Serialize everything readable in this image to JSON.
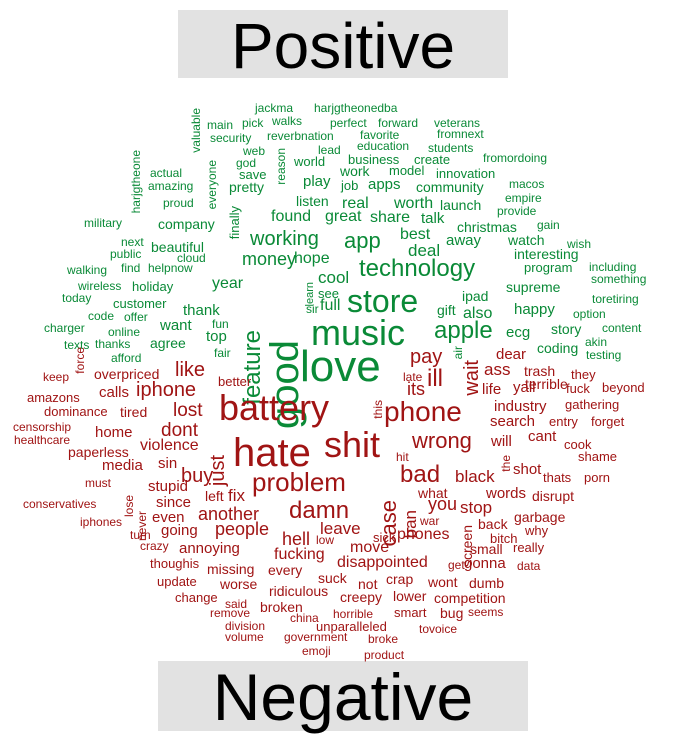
{
  "banners": {
    "positive": "Positive",
    "negative": "Negative"
  },
  "colors": {
    "positive": "#0a8a37",
    "negative": "#a01414",
    "banner_bg": "#e2e2e2"
  },
  "words": [
    {
      "t": "jackma",
      "c": "pos"
    },
    {
      "t": "harjgtheonedba",
      "c": "pos"
    },
    {
      "t": "valuable",
      "c": "pos"
    },
    {
      "t": "main",
      "c": "pos"
    },
    {
      "t": "pick",
      "c": "pos"
    },
    {
      "t": "walks",
      "c": "pos"
    },
    {
      "t": "perfect",
      "c": "pos"
    },
    {
      "t": "forward",
      "c": "pos"
    },
    {
      "t": "veterans",
      "c": "pos"
    },
    {
      "t": "security",
      "c": "pos"
    },
    {
      "t": "reverbnation",
      "c": "pos"
    },
    {
      "t": "favorite",
      "c": "pos"
    },
    {
      "t": "fromnext",
      "c": "pos"
    },
    {
      "t": "web",
      "c": "pos"
    },
    {
      "t": "lead",
      "c": "pos"
    },
    {
      "t": "education",
      "c": "pos"
    },
    {
      "t": "students",
      "c": "pos"
    },
    {
      "t": "harjgtheone",
      "c": "pos"
    },
    {
      "t": "god",
      "c": "pos"
    },
    {
      "t": "reason",
      "c": "pos"
    },
    {
      "t": "world",
      "c": "pos"
    },
    {
      "t": "business",
      "c": "pos"
    },
    {
      "t": "create",
      "c": "pos"
    },
    {
      "t": "fromordoing",
      "c": "pos"
    },
    {
      "t": "actual",
      "c": "pos"
    },
    {
      "t": "save",
      "c": "pos"
    },
    {
      "t": "work",
      "c": "pos"
    },
    {
      "t": "model",
      "c": "pos"
    },
    {
      "t": "innovation",
      "c": "pos"
    },
    {
      "t": "amazing",
      "c": "pos"
    },
    {
      "t": "everyone",
      "c": "pos"
    },
    {
      "t": "pretty",
      "c": "pos"
    },
    {
      "t": "play",
      "c": "pos"
    },
    {
      "t": "job",
      "c": "pos"
    },
    {
      "t": "apps",
      "c": "pos"
    },
    {
      "t": "community",
      "c": "pos"
    },
    {
      "t": "macos",
      "c": "pos"
    },
    {
      "t": "proud",
      "c": "pos"
    },
    {
      "t": "listen",
      "c": "pos"
    },
    {
      "t": "real",
      "c": "pos"
    },
    {
      "t": "worth",
      "c": "pos"
    },
    {
      "t": "launch",
      "c": "pos"
    },
    {
      "t": "empire",
      "c": "pos"
    },
    {
      "t": "provide",
      "c": "pos"
    },
    {
      "t": "military",
      "c": "pos"
    },
    {
      "t": "company",
      "c": "pos"
    },
    {
      "t": "finally",
      "c": "pos"
    },
    {
      "t": "found",
      "c": "pos"
    },
    {
      "t": "great",
      "c": "pos"
    },
    {
      "t": "share",
      "c": "pos"
    },
    {
      "t": "talk",
      "c": "pos"
    },
    {
      "t": "christmas",
      "c": "pos"
    },
    {
      "t": "gain",
      "c": "pos"
    },
    {
      "t": "working",
      "c": "pos"
    },
    {
      "t": "app",
      "c": "pos"
    },
    {
      "t": "best",
      "c": "pos"
    },
    {
      "t": "away",
      "c": "pos"
    },
    {
      "t": "watch",
      "c": "pos"
    },
    {
      "t": "wish",
      "c": "pos"
    },
    {
      "t": "next",
      "c": "pos"
    },
    {
      "t": "beautiful",
      "c": "pos"
    },
    {
      "t": "public",
      "c": "pos"
    },
    {
      "t": "cloud",
      "c": "pos"
    },
    {
      "t": "love",
      "c": "pos"
    },
    {
      "t": "deal",
      "c": "pos"
    },
    {
      "t": "interesting",
      "c": "pos"
    },
    {
      "t": "money",
      "c": "pos"
    },
    {
      "t": "hope",
      "c": "pos"
    },
    {
      "t": "technology",
      "c": "pos"
    },
    {
      "t": "walking",
      "c": "pos"
    },
    {
      "t": "find",
      "c": "pos"
    },
    {
      "t": "helpnow",
      "c": "pos"
    },
    {
      "t": "program",
      "c": "pos"
    },
    {
      "t": "including",
      "c": "pos"
    },
    {
      "t": "good",
      "c": "pos"
    },
    {
      "t": "cool",
      "c": "pos"
    },
    {
      "t": "something",
      "c": "pos"
    },
    {
      "t": "wireless",
      "c": "pos"
    },
    {
      "t": "holiday",
      "c": "pos"
    },
    {
      "t": "year",
      "c": "pos"
    },
    {
      "t": "learn",
      "c": "pos"
    },
    {
      "t": "store",
      "c": "pos"
    },
    {
      "t": "supreme",
      "c": "pos"
    },
    {
      "t": "today",
      "c": "pos"
    },
    {
      "t": "customer",
      "c": "pos"
    },
    {
      "t": "feature",
      "c": "pos"
    },
    {
      "t": "see",
      "c": "pos"
    },
    {
      "t": "ipad",
      "c": "pos"
    },
    {
      "t": "toretiring",
      "c": "pos"
    },
    {
      "t": "code",
      "c": "pos"
    },
    {
      "t": "offer",
      "c": "pos"
    },
    {
      "t": "thank",
      "c": "pos"
    },
    {
      "t": "sir",
      "c": "pos"
    },
    {
      "t": "full",
      "c": "pos"
    },
    {
      "t": "gift",
      "c": "pos"
    },
    {
      "t": "also",
      "c": "pos"
    },
    {
      "t": "happy",
      "c": "pos"
    },
    {
      "t": "option",
      "c": "pos"
    },
    {
      "t": "charger",
      "c": "pos"
    },
    {
      "t": "fun",
      "c": "pos"
    },
    {
      "t": "music",
      "c": "pos"
    },
    {
      "t": "apple",
      "c": "pos"
    },
    {
      "t": "content",
      "c": "pos"
    },
    {
      "t": "online",
      "c": "pos"
    },
    {
      "t": "want",
      "c": "pos"
    },
    {
      "t": "story",
      "c": "pos"
    },
    {
      "t": "texts",
      "c": "pos"
    },
    {
      "t": "thanks",
      "c": "pos"
    },
    {
      "t": "top",
      "c": "pos"
    },
    {
      "t": "ecg",
      "c": "pos"
    },
    {
      "t": "akin",
      "c": "pos"
    },
    {
      "t": "agree",
      "c": "pos"
    },
    {
      "t": "coding",
      "c": "pos"
    },
    {
      "t": "force",
      "c": "neg"
    },
    {
      "t": "afford",
      "c": "pos"
    },
    {
      "t": "fair",
      "c": "pos"
    },
    {
      "t": "air",
      "c": "pos"
    },
    {
      "t": "dear",
      "c": "neg"
    },
    {
      "t": "testing",
      "c": "pos"
    },
    {
      "t": "keep",
      "c": "neg"
    },
    {
      "t": "overpriced",
      "c": "neg"
    },
    {
      "t": "like",
      "c": "neg"
    },
    {
      "t": "pay",
      "c": "neg"
    },
    {
      "t": "late",
      "c": "neg"
    },
    {
      "t": "wait",
      "c": "neg"
    },
    {
      "t": "ass",
      "c": "neg"
    },
    {
      "t": "trash",
      "c": "neg"
    },
    {
      "t": "they",
      "c": "neg"
    },
    {
      "t": "better",
      "c": "neg"
    },
    {
      "t": "its",
      "c": "neg"
    },
    {
      "t": "ill",
      "c": "neg"
    },
    {
      "t": "terrible",
      "c": "neg"
    },
    {
      "t": "amazons",
      "c": "neg"
    },
    {
      "t": "calls",
      "c": "neg"
    },
    {
      "t": "iphone",
      "c": "neg"
    },
    {
      "t": "life",
      "c": "neg"
    },
    {
      "t": "yall",
      "c": "neg"
    },
    {
      "t": "fuck",
      "c": "neg"
    },
    {
      "t": "beyond",
      "c": "neg"
    },
    {
      "t": "battery",
      "c": "neg"
    },
    {
      "t": "dominance",
      "c": "neg"
    },
    {
      "t": "tired",
      "c": "neg"
    },
    {
      "t": "lost",
      "c": "neg"
    },
    {
      "t": "this",
      "c": "neg"
    },
    {
      "t": "phone",
      "c": "neg"
    },
    {
      "t": "industry",
      "c": "neg"
    },
    {
      "t": "gathering",
      "c": "neg"
    },
    {
      "t": "censorship",
      "c": "neg"
    },
    {
      "t": "entry",
      "c": "neg"
    },
    {
      "t": "forget",
      "c": "neg"
    },
    {
      "t": "home",
      "c": "neg"
    },
    {
      "t": "dont",
      "c": "neg"
    },
    {
      "t": "search",
      "c": "neg"
    },
    {
      "t": "healthcare",
      "c": "neg"
    },
    {
      "t": "cant",
      "c": "neg"
    },
    {
      "t": "violence",
      "c": "neg"
    },
    {
      "t": "wrong",
      "c": "neg"
    },
    {
      "t": "will",
      "c": "neg"
    },
    {
      "t": "cook",
      "c": "neg"
    },
    {
      "t": "paperless",
      "c": "neg"
    },
    {
      "t": "just",
      "c": "neg"
    },
    {
      "t": "hate",
      "c": "neg"
    },
    {
      "t": "shit",
      "c": "neg"
    },
    {
      "t": "hit",
      "c": "neg"
    },
    {
      "t": "shame",
      "c": "neg"
    },
    {
      "t": "media",
      "c": "neg"
    },
    {
      "t": "sin",
      "c": "neg"
    },
    {
      "t": "the",
      "c": "neg"
    },
    {
      "t": "shot",
      "c": "neg"
    },
    {
      "t": "thats",
      "c": "neg"
    },
    {
      "t": "porn",
      "c": "neg"
    },
    {
      "t": "must",
      "c": "neg"
    },
    {
      "t": "buy",
      "c": "neg"
    },
    {
      "t": "bad",
      "c": "neg"
    },
    {
      "t": "black",
      "c": "neg"
    },
    {
      "t": "stupid",
      "c": "neg"
    },
    {
      "t": "problem",
      "c": "neg"
    },
    {
      "t": "case",
      "c": "neg"
    },
    {
      "t": "what",
      "c": "neg"
    },
    {
      "t": "words",
      "c": "neg"
    },
    {
      "t": "disrupt",
      "c": "neg"
    },
    {
      "t": "conservatives",
      "c": "neg"
    },
    {
      "t": "lose",
      "c": "neg"
    },
    {
      "t": "since",
      "c": "neg"
    },
    {
      "t": "left",
      "c": "neg"
    },
    {
      "t": "fix",
      "c": "neg"
    },
    {
      "t": "ban",
      "c": "neg"
    },
    {
      "t": "you",
      "c": "neg"
    },
    {
      "t": "stop",
      "c": "neg"
    },
    {
      "t": "never",
      "c": "neg"
    },
    {
      "t": "even",
      "c": "neg"
    },
    {
      "t": "another",
      "c": "neg"
    },
    {
      "t": "damn",
      "c": "neg"
    },
    {
      "t": "war",
      "c": "neg"
    },
    {
      "t": "screen",
      "c": "neg"
    },
    {
      "t": "back",
      "c": "neg"
    },
    {
      "t": "garbage",
      "c": "neg"
    },
    {
      "t": "iphones",
      "c": "neg"
    },
    {
      "t": "going",
      "c": "neg"
    },
    {
      "t": "people",
      "c": "neg"
    },
    {
      "t": "leave",
      "c": "neg"
    },
    {
      "t": "why",
      "c": "neg"
    },
    {
      "t": "turn",
      "c": "neg"
    },
    {
      "t": "hell",
      "c": "neg"
    },
    {
      "t": "sick",
      "c": "neg"
    },
    {
      "t": "phones",
      "c": "neg"
    },
    {
      "t": "bitch",
      "c": "neg"
    },
    {
      "t": "crazy",
      "c": "neg"
    },
    {
      "t": "low",
      "c": "neg"
    },
    {
      "t": "small",
      "c": "neg"
    },
    {
      "t": "really",
      "c": "neg"
    },
    {
      "t": "annoying",
      "c": "neg"
    },
    {
      "t": "move",
      "c": "neg"
    },
    {
      "t": "fucking",
      "c": "neg"
    },
    {
      "t": "gonna",
      "c": "neg"
    },
    {
      "t": "thoughis",
      "c": "neg"
    },
    {
      "t": "disappointed",
      "c": "neg"
    },
    {
      "t": "get",
      "c": "neg"
    },
    {
      "t": "data",
      "c": "neg"
    },
    {
      "t": "missing",
      "c": "neg"
    },
    {
      "t": "every",
      "c": "neg"
    },
    {
      "t": "update",
      "c": "neg"
    },
    {
      "t": "suck",
      "c": "neg"
    },
    {
      "t": "crap",
      "c": "neg"
    },
    {
      "t": "wont",
      "c": "neg"
    },
    {
      "t": "dumb",
      "c": "neg"
    },
    {
      "t": "worse",
      "c": "neg"
    },
    {
      "t": "not",
      "c": "neg"
    },
    {
      "t": "ridiculous",
      "c": "neg"
    },
    {
      "t": "change",
      "c": "neg"
    },
    {
      "t": "creepy",
      "c": "neg"
    },
    {
      "t": "lower",
      "c": "neg"
    },
    {
      "t": "competition",
      "c": "neg"
    },
    {
      "t": "said",
      "c": "neg"
    },
    {
      "t": "broken",
      "c": "neg"
    },
    {
      "t": "remove",
      "c": "neg"
    },
    {
      "t": "bug",
      "c": "neg"
    },
    {
      "t": "seems",
      "c": "neg"
    },
    {
      "t": "china",
      "c": "neg"
    },
    {
      "t": "horrible",
      "c": "neg"
    },
    {
      "t": "smart",
      "c": "neg"
    },
    {
      "t": "division",
      "c": "neg"
    },
    {
      "t": "unparalleled",
      "c": "neg"
    },
    {
      "t": "tovoice",
      "c": "neg"
    },
    {
      "t": "volume",
      "c": "neg"
    },
    {
      "t": "government",
      "c": "neg"
    },
    {
      "t": "broke",
      "c": "neg"
    },
    {
      "t": "emoji",
      "c": "neg"
    },
    {
      "t": "product",
      "c": "neg"
    }
  ]
}
